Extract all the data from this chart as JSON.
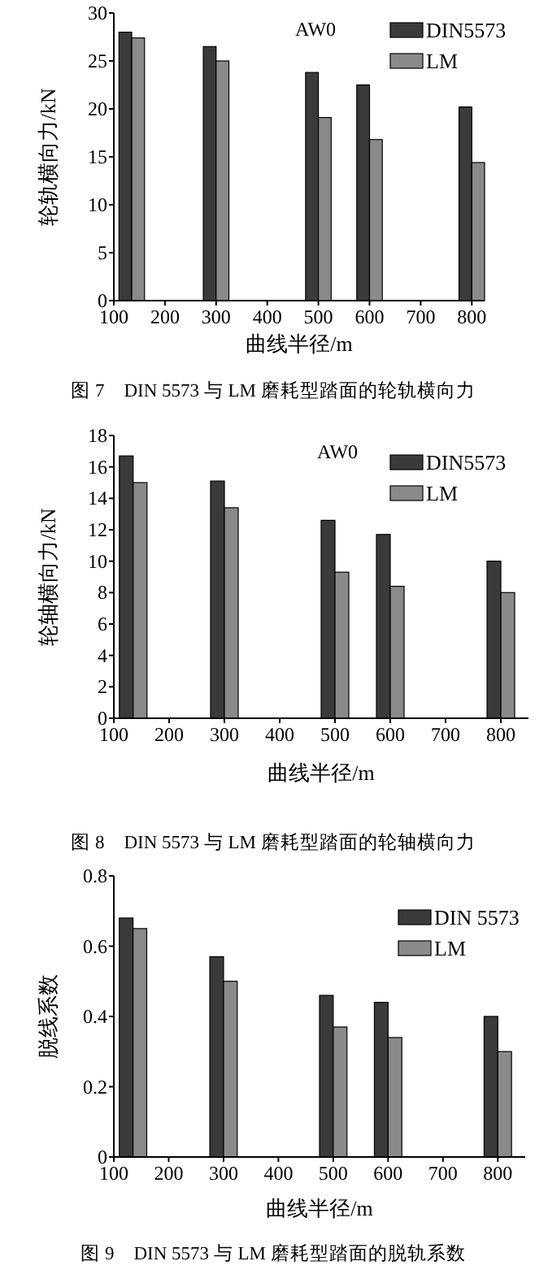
{
  "chart_data": [
    {
      "type": "bar",
      "title": "图 7　DIN 5573 与 LM 磨耗型踏面的轮轨横向力",
      "xlabel": "曲线半径/m",
      "ylabel": "轮轨横向力/kN",
      "annotations": [
        "AW0"
      ],
      "x": [
        135,
        300,
        500,
        600,
        800
      ],
      "xlim": [
        100,
        825
      ],
      "xticks": [
        100,
        200,
        300,
        400,
        500,
        600,
        700,
        800
      ],
      "ylim": [
        0,
        30
      ],
      "yticks": [
        0,
        5,
        10,
        15,
        20,
        25,
        30
      ],
      "legend": "top right",
      "series": [
        {
          "name": "DIN5573",
          "color": "#3a3a3a",
          "values": [
            28.0,
            26.5,
            23.8,
            22.5,
            20.2
          ]
        },
        {
          "name": "LM",
          "color": "#8a8a8a",
          "values": [
            27.4,
            25.0,
            19.1,
            16.8,
            14.4
          ]
        }
      ]
    },
    {
      "type": "bar",
      "title": "图 8　DIN 5573 与 LM 磨耗型踏面的轮轴横向力",
      "xlabel": "曲线半径/m",
      "ylabel": "轮轴横向力/kN",
      "annotations": [
        "AW0"
      ],
      "x": [
        135,
        300,
        500,
        600,
        800
      ],
      "xlim": [
        100,
        850
      ],
      "xticks": [
        100,
        200,
        300,
        400,
        500,
        600,
        700,
        800
      ],
      "ylim": [
        0,
        18
      ],
      "yticks": [
        0,
        2,
        4,
        6,
        8,
        10,
        12,
        14,
        16,
        18
      ],
      "legend": "top right",
      "series": [
        {
          "name": "DIN5573",
          "color": "#3a3a3a",
          "values": [
            16.7,
            15.1,
            12.6,
            11.7,
            10.0
          ]
        },
        {
          "name": "LM",
          "color": "#8a8a8a",
          "values": [
            15.0,
            13.4,
            9.3,
            8.4,
            8.0
          ]
        }
      ]
    },
    {
      "type": "bar",
      "title": "图 9　DIN 5573 与 LM 磨耗型踏面的脱轨系数",
      "xlabel": "曲线半径/m",
      "ylabel": "脱线系数",
      "x": [
        135,
        300,
        500,
        600,
        800
      ],
      "xlim": [
        100,
        850
      ],
      "xticks": [
        100,
        200,
        300,
        400,
        500,
        600,
        700,
        800
      ],
      "ylim": [
        0,
        0.8
      ],
      "yticks": [
        0,
        0.2,
        0.4,
        0.6,
        0.8
      ],
      "legend": "top right",
      "series": [
        {
          "name": "DIN 5573",
          "color": "#3a3a3a",
          "values": [
            0.68,
            0.57,
            0.46,
            0.44,
            0.4
          ]
        },
        {
          "name": "LM",
          "color": "#8a8a8a",
          "values": [
            0.65,
            0.5,
            0.37,
            0.34,
            0.3
          ]
        }
      ]
    }
  ]
}
